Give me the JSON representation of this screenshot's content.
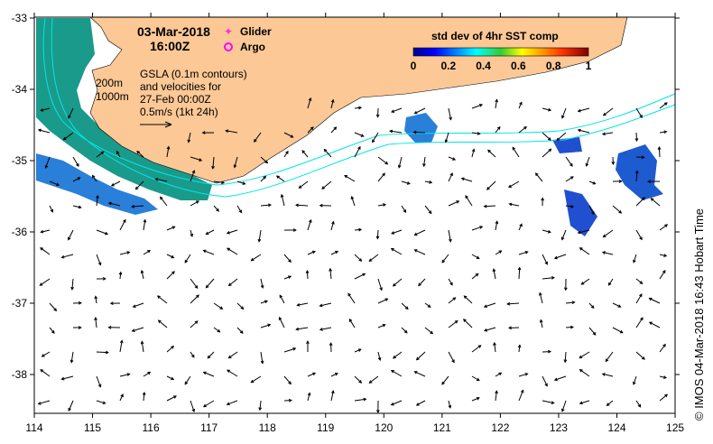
{
  "header": {
    "date": "03-Mar-2018",
    "time": "16:00Z"
  },
  "legend": {
    "glider": "Glider",
    "argo": "Argo",
    "glider_color": "#ff33cc",
    "argo_color": "#ff00ff"
  },
  "annotation": {
    "line1": "GSLA (0.1m contours)",
    "line2": "and velocities for",
    "line3": "27-Feb 00:00Z",
    "line4": "0.5m/s (1kt 24h)"
  },
  "contour_labels": {
    "c200": "200m",
    "c1000": "1000m"
  },
  "colorbar": {
    "title": "std dev of 4hr SST comp",
    "ticks": [
      "0",
      "0.2",
      "0.4",
      "0.6",
      "0.8",
      "1"
    ]
  },
  "axes": {
    "x_ticks": [
      "114",
      "115",
      "116",
      "117",
      "118",
      "119",
      "120",
      "121",
      "122",
      "123",
      "124",
      "125"
    ],
    "y_ticks": [
      "-33",
      "-34",
      "-35",
      "-36",
      "-37",
      "-38"
    ]
  },
  "credit": "© IMOS 04-Mar-2018 16:43 Hobart Time",
  "colors": {
    "land": "#fcc896",
    "contour": "#00e5e5",
    "arrow": "#000000"
  }
}
